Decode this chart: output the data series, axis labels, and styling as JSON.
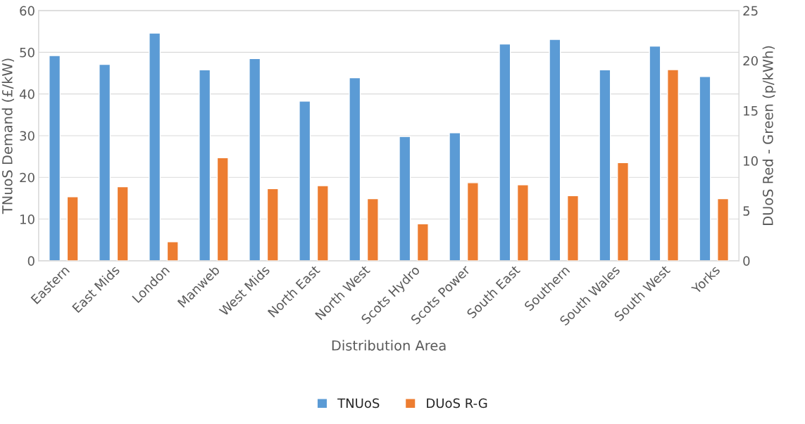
{
  "chart_data": {
    "type": "bar",
    "xlabel": "Distribution Area",
    "ylabel": "TNuoS Demand (£/kW)",
    "y2label": "DUoS Red - Green (p/kWh)",
    "categories": [
      "Eastern",
      "East Mids",
      "London",
      "Manweb",
      "West Mids",
      "North East",
      "North West",
      "Scots Hydro",
      "Scots Power",
      "South East",
      "Southern",
      "South Wales",
      "South West",
      "Yorks"
    ],
    "series": [
      {
        "name": "TNUoS",
        "color": "#5b9bd5",
        "values": [
          49.2,
          47.1,
          54.6,
          45.8,
          48.5,
          38.3,
          43.9,
          29.8,
          30.7,
          52.0,
          53.1,
          45.8,
          51.5,
          44.2
        ]
      },
      {
        "name": "DUoS R-G",
        "color": "#ed7d31",
        "axis": "y2",
        "values": [
          6.4,
          7.4,
          1.9,
          10.3,
          7.2,
          7.5,
          6.2,
          3.7,
          7.8,
          7.6,
          6.5,
          9.8,
          19.1,
          6.2
        ]
      }
    ],
    "ylim": [
      0,
      60
    ],
    "yticks": [
      0,
      10,
      20,
      30,
      40,
      50,
      60
    ],
    "y2lim": [
      0,
      25
    ],
    "y2ticks": [
      0,
      5,
      10,
      15,
      20,
      25
    ],
    "grid": "y",
    "legend": "bottom"
  }
}
